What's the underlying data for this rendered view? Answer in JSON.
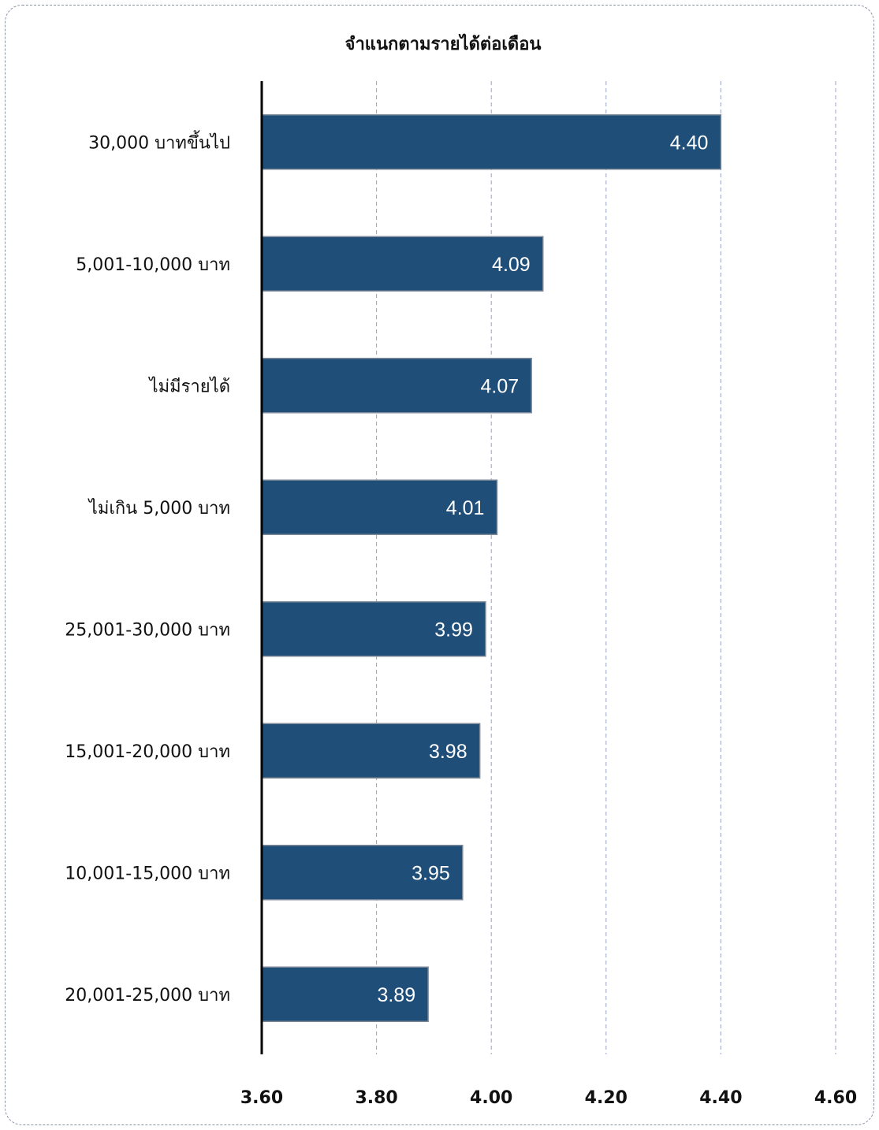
{
  "chart_data": {
    "type": "bar",
    "orientation": "horizontal",
    "title": "จำแนกตามรายได้ต่อเดือน",
    "categories": [
      "30,000 บาทขึ้นไป",
      "5,001-10,000 บาท",
      "ไม่มีรายได้",
      "ไม่เกิน 5,000 บาท",
      "25,001-30,000 บาท",
      "15,001-20,000 บาท",
      "10,001-15,000 บาท",
      "20,001-25,000 บาท"
    ],
    "values": [
      4.4,
      4.09,
      4.07,
      4.01,
      3.99,
      3.98,
      3.95,
      3.89
    ],
    "value_labels": [
      "4.40",
      "4.09",
      "4.07",
      "4.01",
      "3.99",
      "3.98",
      "3.95",
      "3.89"
    ],
    "xlim": [
      3.6,
      4.6
    ],
    "x_ticks": [
      3.6,
      3.8,
      4.0,
      4.2,
      4.4,
      4.6
    ],
    "x_tick_labels": [
      "3.60",
      "3.80",
      "4.00",
      "4.20",
      "4.40",
      "4.60"
    ],
    "grid": "vertical dashed",
    "legend": "none",
    "colors": {
      "bar": "#1f4e79",
      "bar_border": "#7f8a98",
      "grid": "#9aa1c4",
      "axis": "#000000",
      "value_label": "#ffffff"
    }
  }
}
